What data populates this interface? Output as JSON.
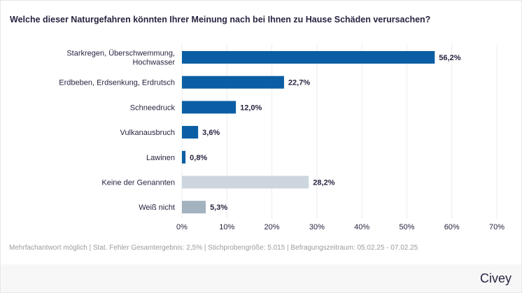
{
  "title": "Welche dieser Naturgefahren könnten Ihrer Meinung nach bei Ihnen zu Hause Schäden verursachen?",
  "note": "Mehrfachantwort möglich | Stat. Fehler Gesamtergebnis: 2,5% | Stichprobengröße: 5.015 | Befragungszeitraum: 05.02.25 - 07.02.25",
  "logo": "Civey",
  "colors": {
    "primary": "#0b5ea4",
    "none": "#cdd6df",
    "dont_know": "#a3b2bf",
    "grid": "#ececef"
  },
  "chart_data": {
    "type": "bar",
    "orientation": "horizontal",
    "categories": [
      [
        "Starkregen, Überschwemmung,",
        "Hochwasser"
      ],
      [
        "Erdbeben, Erdsenkung, Erdrutsch"
      ],
      [
        "Schneedruck"
      ],
      [
        "Vulkanausbruch"
      ],
      [
        "Lawinen"
      ],
      [
        "Keine der Genannten"
      ],
      [
        "Weiß nicht"
      ]
    ],
    "values": [
      56.2,
      22.7,
      12.0,
      3.6,
      0.8,
      28.2,
      5.3
    ],
    "data_labels": [
      "56,2%",
      "22,7%",
      "12,0%",
      "3,6%",
      "0,8%",
      "28,2%",
      "5,3%"
    ],
    "bar_colors": [
      "#0b5ea4",
      "#0b5ea4",
      "#0b5ea4",
      "#0b5ea4",
      "#0b5ea4",
      "#cdd6df",
      "#a3b2bf"
    ],
    "xlim": [
      0,
      70
    ],
    "xticks": [
      0,
      10,
      20,
      30,
      40,
      50,
      60,
      70
    ],
    "xtick_labels": [
      "0%",
      "10%",
      "20%",
      "30%",
      "40%",
      "50%",
      "60%",
      "70%"
    ],
    "grid": true,
    "legend": "none"
  }
}
